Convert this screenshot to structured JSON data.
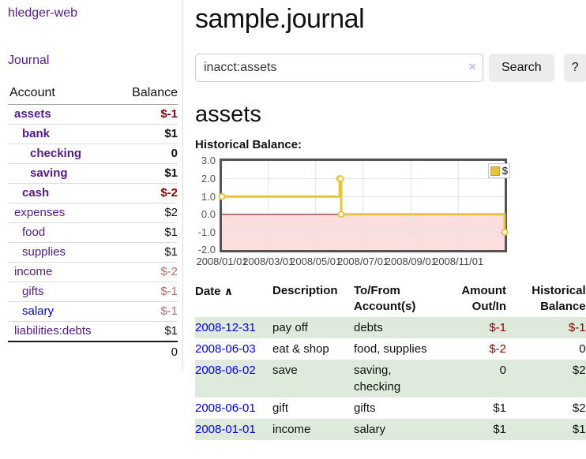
{
  "app": {
    "title": "hledger-web"
  },
  "sidebar": {
    "nav": [
      {
        "label": "Journal"
      }
    ],
    "accounts_table": {
      "headers": {
        "account": "Account",
        "balance": "Balance"
      },
      "rows": [
        {
          "name": "assets",
          "depth": 0,
          "matched": true,
          "balance": "$-1",
          "balance_class": "neg-strong"
        },
        {
          "name": "bank",
          "depth": 1,
          "matched": true,
          "balance": "$1",
          "balance_class": "pos-strong"
        },
        {
          "name": "checking",
          "depth": 2,
          "matched": true,
          "balance": "0",
          "balance_class": "pos-strong"
        },
        {
          "name": "saving",
          "depth": 2,
          "matched": true,
          "balance": "$1",
          "balance_class": "pos-strong"
        },
        {
          "name": "cash",
          "depth": 1,
          "matched": true,
          "balance": "$-2",
          "balance_class": "neg-strong"
        },
        {
          "name": "expenses",
          "depth": 0,
          "matched": false,
          "balance": "$2",
          "balance_class": "pos"
        },
        {
          "name": "food",
          "depth": 1,
          "matched": false,
          "balance": "$1",
          "balance_class": "pos"
        },
        {
          "name": "supplies",
          "depth": 1,
          "matched": false,
          "balance": "$1",
          "balance_class": "pos"
        },
        {
          "name": "income",
          "depth": 0,
          "matched": false,
          "balance": "$-2",
          "balance_class": "neg"
        },
        {
          "name": "gifts",
          "depth": 1,
          "matched": false,
          "balance": "$-1",
          "balance_class": "neg"
        },
        {
          "name": "salary",
          "depth": 1,
          "matched": false,
          "link_style": "unvisited",
          "balance": "$-1",
          "balance_class": "neg"
        },
        {
          "name": "liabilities:debts",
          "depth": 0,
          "matched": false,
          "balance": "$1",
          "balance_class": "pos"
        }
      ],
      "total": "0"
    }
  },
  "main": {
    "title": "sample.journal",
    "search": {
      "value": "inacct:assets",
      "clear_icon": "×",
      "button_label": "Search",
      "help_label": "?"
    },
    "account_heading": "assets",
    "chart_label": "Historical Balance:",
    "register": {
      "headers": {
        "date": "Date",
        "sort_icon": "∧",
        "description": "Description",
        "accounts": "To/From Account(s)",
        "amount": "Amount Out/In",
        "balance": "Historical Balance"
      },
      "rows": [
        {
          "date": "2008-12-31",
          "description": "pay off",
          "accounts": "debts",
          "amount": "$-1",
          "amount_negative": true,
          "balance": "$-1",
          "balance_negative": true,
          "stripe": true
        },
        {
          "date": "2008-06-03",
          "description": "eat & shop",
          "accounts": "food, supplies",
          "amount": "$-2",
          "amount_negative": true,
          "balance": "0",
          "balance_negative": false,
          "stripe": false
        },
        {
          "date": "2008-06-02",
          "description": "save",
          "accounts": "saving, checking",
          "amount": "0",
          "amount_negative": false,
          "balance": "$2",
          "balance_negative": false,
          "stripe": true
        },
        {
          "date": "2008-06-01",
          "description": "gift",
          "accounts": "gifts",
          "amount": "$1",
          "amount_negative": false,
          "balance": "$2",
          "balance_negative": false,
          "stripe": false
        },
        {
          "date": "2008-01-01",
          "description": "income",
          "accounts": "salary",
          "amount": "$1",
          "amount_negative": false,
          "balance": "$1",
          "balance_negative": false,
          "stripe": true
        }
      ]
    }
  },
  "chart_data": {
    "type": "line",
    "title": "Historical Balance:",
    "series": [
      {
        "name": "$",
        "color": "#E8C340",
        "steps": true,
        "marker": "open-circle",
        "points": [
          [
            "2008-01-01",
            1
          ],
          [
            "2008-06-01",
            2
          ],
          [
            "2008-06-02",
            2
          ],
          [
            "2008-06-03",
            0
          ],
          [
            "2008-12-31",
            -1
          ]
        ]
      }
    ],
    "xrange": [
      "2008-01-01",
      "2008-12-31"
    ],
    "ylim": [
      -2,
      3
    ],
    "ytick_values": [
      3,
      2,
      1,
      0,
      -1,
      -2
    ],
    "ytick_labels": [
      "3.0",
      "2.0",
      "1.0",
      "0.0",
      "-1.0",
      "-2.0"
    ],
    "xtick_values": [
      "2008-01-01",
      "2008-03-01",
      "2008-05-01",
      "2008-07-01",
      "2008-09-01",
      "2008-11-01"
    ],
    "xtick_labels": [
      "2008/01/01",
      "2008/03/01",
      "2008/05/01",
      "2008/07/01",
      "2008/09/01",
      "2008/11/01"
    ],
    "grid": true,
    "grid_color": "#E3E3E3",
    "negative_region_color": "#FCDEDE",
    "zero_line_color": "#8B0000",
    "border_color": "#545454",
    "legend": {
      "label": "$",
      "swatch_color": "#E8C340"
    },
    "legend_position": "top-right"
  }
}
